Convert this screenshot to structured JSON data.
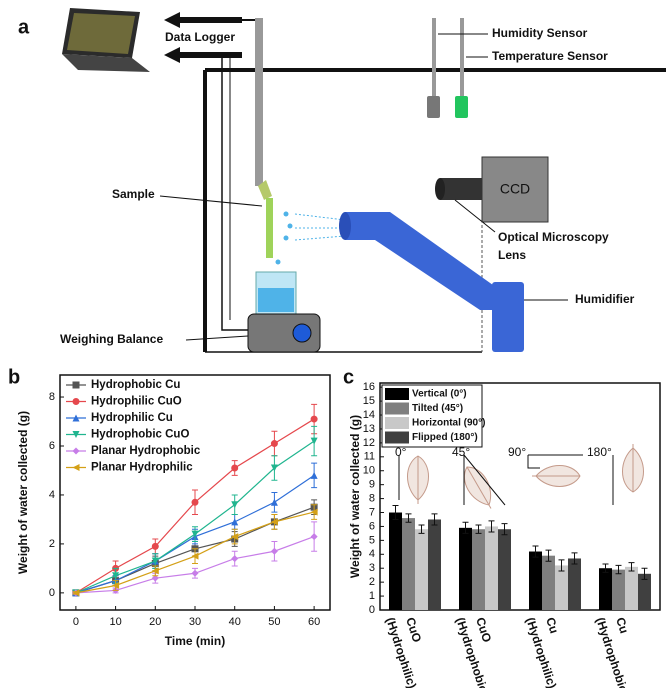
{
  "panel_labels": [
    "a",
    "b",
    "c"
  ],
  "panel_a": {
    "data_logger": "Data Logger",
    "humidity_sensor": "Humidity Sensor",
    "temperature_sensor": "Temperature Sensor",
    "sample": "Sample",
    "ccd": "CCD",
    "optical_lens": [
      "Optical Microscopy",
      "Lens"
    ],
    "humidifier": "Humidifier",
    "weighing_balance": "Weighing Balance"
  },
  "chart_data": [
    {
      "type": "line",
      "x_label": "Time (min)",
      "y_label": "Weight of water collected (g)",
      "x": [
        0,
        10,
        20,
        30,
        40,
        50,
        60
      ],
      "xlim": [
        -4,
        64
      ],
      "xticks": [
        0,
        10,
        20,
        30,
        40,
        50,
        60
      ],
      "ylim": [
        -0.7,
        8.9
      ],
      "yticks": [
        0,
        2,
        4,
        6,
        8
      ],
      "legend": "top-left",
      "series": [
        {
          "name": "Hydrophobic Cu",
          "color": "#555555",
          "marker": "square",
          "values": [
            0,
            0.5,
            1.2,
            1.8,
            2.2,
            2.9,
            3.5
          ],
          "errors": [
            0.05,
            0.2,
            0.3,
            0.3,
            0.3,
            0.3,
            0.3
          ]
        },
        {
          "name": "Hydrophilic CuO",
          "color": "#e5484d",
          "marker": "circle",
          "values": [
            0,
            1.0,
            1.9,
            3.7,
            5.1,
            6.1,
            7.1
          ],
          "errors": [
            0.05,
            0.3,
            0.3,
            0.5,
            0.3,
            0.5,
            0.6
          ]
        },
        {
          "name": "Hydrophilic Cu",
          "color": "#2f6fd8",
          "marker": "triangle-up",
          "values": [
            0,
            0.5,
            1.3,
            2.3,
            2.9,
            3.7,
            4.8
          ],
          "errors": [
            0.05,
            0.2,
            0.3,
            0.3,
            0.3,
            0.4,
            0.5
          ]
        },
        {
          "name": "Hydrophobic CuO",
          "color": "#20b58f",
          "marker": "triangle-down",
          "values": [
            0,
            0.7,
            1.3,
            2.4,
            3.6,
            5.1,
            6.2
          ],
          "errors": [
            0.05,
            0.3,
            0.3,
            0.3,
            0.4,
            0.5,
            0.6
          ]
        },
        {
          "name": "Planar Hydrophobic",
          "color": "#c77de8",
          "marker": "diamond",
          "values": [
            0,
            0.1,
            0.6,
            0.8,
            1.4,
            1.7,
            2.3
          ],
          "errors": [
            0.05,
            0.1,
            0.2,
            0.2,
            0.3,
            0.4,
            0.6
          ]
        },
        {
          "name": "Planar Hydrophilic",
          "color": "#d4a017",
          "marker": "triangle-left",
          "values": [
            0,
            0.3,
            0.9,
            1.5,
            2.3,
            2.9,
            3.3
          ],
          "errors": [
            0.05,
            0.2,
            0.2,
            0.3,
            0.3,
            0.3,
            0.3
          ]
        }
      ]
    },
    {
      "type": "bar",
      "y_label": "Weight of water collected (g)",
      "categories": [
        "CuO",
        "CuO",
        "Cu",
        "Cu"
      ],
      "category_groups": [
        "(Hydrophilic)",
        "(Hydrophobic)",
        "(Hydrophilic)",
        "(Hydrophobic)"
      ],
      "ylim": [
        0,
        16.3
      ],
      "yticks": [
        0,
        1,
        2,
        3,
        4,
        5,
        6,
        7,
        8,
        9,
        10,
        11,
        12,
        13,
        14,
        15,
        16
      ],
      "legend": "top-left",
      "annotations": [
        "0°",
        "45°",
        "90°",
        "180°"
      ],
      "series": [
        {
          "name": "Vertical (0°)",
          "color": "#000000",
          "values": [
            7.0,
            5.9,
            4.2,
            3.0
          ],
          "errors": [
            0.5,
            0.4,
            0.4,
            0.3
          ]
        },
        {
          "name": "Tilted (45°)",
          "color": "#7f7f7f",
          "values": [
            6.6,
            5.8,
            3.9,
            2.9
          ],
          "errors": [
            0.3,
            0.3,
            0.4,
            0.3
          ]
        },
        {
          "name": "Horizontal (90°)",
          "color": "#c8c8c8",
          "values": [
            5.8,
            6.0,
            3.2,
            3.1
          ],
          "errors": [
            0.3,
            0.4,
            0.4,
            0.3
          ]
        },
        {
          "name": "Flipped (180°)",
          "color": "#404040",
          "values": [
            6.5,
            5.8,
            3.7,
            2.6
          ],
          "errors": [
            0.4,
            0.4,
            0.4,
            0.4
          ]
        }
      ]
    }
  ]
}
